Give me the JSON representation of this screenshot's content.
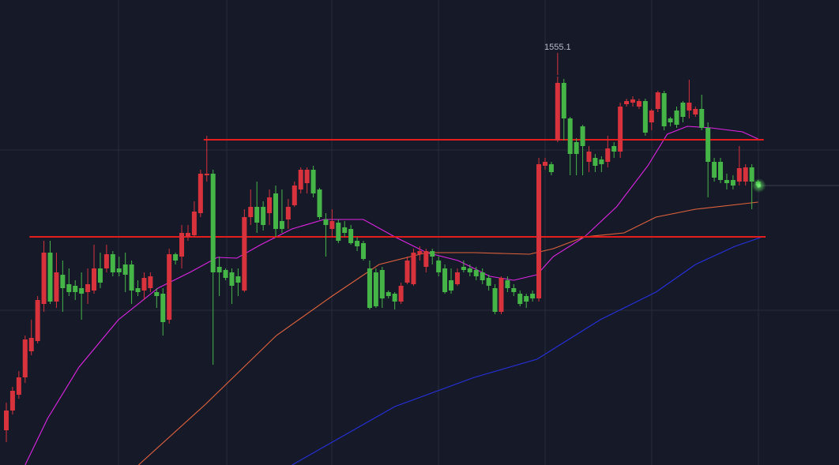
{
  "chart_data": {
    "type": "candlestick",
    "ylim": [
      1309.1,
      1603.6
    ],
    "up_color": "#d8323d",
    "down_color": "#45b548",
    "candles": {
      "open": [
        1331.1,
        1343.6,
        1353.6,
        1364.6,
        1381.1,
        1387.6,
        1411.1,
        1443.6,
        1412.6,
        1429.6,
        1423.6,
        1422.6,
        1421.1,
        1418.6,
        1419.6,
        1433.6,
        1433.6,
        1442.6,
        1433.6,
        1436.1,
        1436.1,
        1421.1,
        1419.6,
        1421.1,
        1418.6,
        1417.6,
        1401.1,
        1442.6,
        1441.1,
        1453.6,
        1454.6,
        1468.6,
        1492.6,
        1493.6,
        1434.6,
        1432.6,
        1431.1,
        1428.6,
        1419.6,
        1466.1,
        1472.6,
        1472.6,
        1468.6,
        1481.1,
        1463.6,
        1464.6,
        1473.6,
        1483.6,
        1487.6,
        1496.1,
        1483.6,
        1464.6,
        1458.6,
        1462.6,
        1459.6,
        1458.6,
        1451.1,
        1449.6,
        1433.6,
        1431.1,
        1432.6,
        1418.6,
        1417.6,
        1412.6,
        1424.6,
        1423.6,
        1442.6,
        1434.6,
        1444.6,
        1438.6,
        1433.6,
        1426.1,
        1423.6,
        1434.6,
        1433.6,
        1432.6,
        1431.1,
        1427.6,
        1421.1,
        1406.1,
        1426.1,
        1421.1,
        1417.6,
        1416.1,
        1417.6,
        1414.6,
        1498.6,
        1499.6,
        1514.6,
        1551.1,
        1528.6,
        1513.6,
        1523.6,
        1501.1,
        1503.6,
        1502.6,
        1501.1,
        1511.1,
        1507.6,
        1537.6,
        1538.6,
        1536.1,
        1539.6,
        1526.1,
        1534.6,
        1544.6,
        1528.6,
        1533.6,
        1538.6,
        1533.6,
        1531.1,
        1534.6,
        1522.6,
        1501.1,
        1501.1,
        1489.6,
        1489.6,
        1488.6,
        1488.6,
        1497.6,
        1488.6
      ],
      "high": [
        1348.6,
        1358.6,
        1368.6,
        1391.1,
        1401.1,
        1416.1,
        1451.1,
        1451.1,
        1443.6,
        1438.6,
        1433.6,
        1426.1,
        1431.1,
        1433.6,
        1448.6,
        1443.6,
        1448.6,
        1444.6,
        1441.1,
        1443.6,
        1438.6,
        1426.1,
        1431.1,
        1431.1,
        1421.1,
        1421.1,
        1446.1,
        1443.6,
        1461.1,
        1461.1,
        1476.1,
        1496.1,
        1517.6,
        1496.1,
        1441.1,
        1433.6,
        1433.6,
        1433.6,
        1471.1,
        1483.6,
        1488.6,
        1476.1,
        1483.6,
        1486.1,
        1483.6,
        1477.6,
        1488.6,
        1497.6,
        1497.6,
        1498.6,
        1484.6,
        1468.6,
        1471.1,
        1464.6,
        1463.6,
        1461.1,
        1453.6,
        1451.1,
        1438.6,
        1433.6,
        1434.6,
        1419.6,
        1418.6,
        1424.6,
        1441.1,
        1446.1,
        1447.6,
        1446.1,
        1446.1,
        1441.1,
        1436.1,
        1433.6,
        1433.6,
        1438.6,
        1436.1,
        1434.6,
        1433.6,
        1429.6,
        1423.6,
        1428.6,
        1428.6,
        1423.6,
        1419.6,
        1417.6,
        1419.6,
        1503.6,
        1503.6,
        1501.1,
        1555.1,
        1553.6,
        1529.6,
        1516.1,
        1524.6,
        1511.1,
        1506.1,
        1504.6,
        1517.6,
        1513.6,
        1538.6,
        1541.1,
        1542.6,
        1541.1,
        1541.1,
        1534.6,
        1546.1,
        1546.1,
        1529.6,
        1536.1,
        1539.6,
        1553.1,
        1536.1,
        1543.6,
        1526.1,
        1503.6,
        1503.6,
        1493.6,
        1492.6,
        1511.1,
        1499.6,
        1499.6,
        1489.6
      ],
      "low": [
        1323.6,
        1341.1,
        1351.1,
        1361.1,
        1378.6,
        1386.1,
        1406.1,
        1411.1,
        1408.6,
        1406.1,
        1416.1,
        1413.6,
        1401.1,
        1411.1,
        1417.6,
        1421.1,
        1431.1,
        1428.6,
        1428.6,
        1418.6,
        1411.1,
        1416.1,
        1413.6,
        1418.6,
        1408.6,
        1391.1,
        1398.6,
        1436.1,
        1433.6,
        1451.1,
        1453.6,
        1466.1,
        1488.6,
        1372.6,
        1416.1,
        1426.1,
        1411.1,
        1416.1,
        1418.6,
        1461.1,
        1456.1,
        1457.6,
        1461.1,
        1453.6,
        1456.1,
        1458.6,
        1472.6,
        1481.1,
        1481.1,
        1478.6,
        1464.6,
        1441.1,
        1453.6,
        1449.6,
        1453.6,
        1448.6,
        1444.6,
        1438.6,
        1407.6,
        1408.6,
        1408.6,
        1414.6,
        1407.6,
        1411.1,
        1423.6,
        1422.6,
        1438.6,
        1431.1,
        1436.1,
        1428.6,
        1417.6,
        1417.6,
        1422.6,
        1431.1,
        1428.6,
        1426.1,
        1423.6,
        1419.6,
        1404.6,
        1404.6,
        1418.6,
        1416.1,
        1409.6,
        1408.6,
        1412.6,
        1412.6,
        1496.1,
        1492.6,
        1513.6,
        1514.6,
        1492.6,
        1492.6,
        1492.6,
        1494.6,
        1494.6,
        1494.6,
        1497.6,
        1503.6,
        1503.6,
        1536.1,
        1536.1,
        1534.6,
        1517.6,
        1521.1,
        1532.6,
        1521.1,
        1523.6,
        1522.6,
        1526.1,
        1528.6,
        1529.6,
        1521.1,
        1478.6,
        1488.6,
        1487.6,
        1483.6,
        1483.6,
        1486.1,
        1486.1,
        1471.1,
        1484.6
      ],
      "close": [
        1343.6,
        1356.1,
        1364.6,
        1388.6,
        1389.6,
        1413.6,
        1443.6,
        1412.6,
        1431.1,
        1421.1,
        1418.6,
        1418.6,
        1417.6,
        1423.6,
        1433.6,
        1424.6,
        1442.6,
        1431.1,
        1431.1,
        1429.6,
        1419.6,
        1418.6,
        1427.6,
        1428.6,
        1416.1,
        1399.6,
        1442.6,
        1438.6,
        1456.1,
        1456.1,
        1469.6,
        1493.6,
        1493.6,
        1431.1,
        1431.1,
        1427.6,
        1422.6,
        1424.6,
        1466.1,
        1472.6,
        1462.6,
        1461.1,
        1478.6,
        1458.6,
        1458.6,
        1472.6,
        1486.1,
        1496.1,
        1496.1,
        1481.1,
        1466.1,
        1461.1,
        1463.6,
        1451.1,
        1456.1,
        1449.6,
        1447.6,
        1439.6,
        1408.6,
        1409.6,
        1414.6,
        1416.1,
        1412.6,
        1422.6,
        1438.6,
        1443.6,
        1444.6,
        1444.6,
        1441.1,
        1431.1,
        1418.6,
        1419.6,
        1431.1,
        1432.6,
        1431.1,
        1428.6,
        1426.1,
        1422.6,
        1406.1,
        1427.6,
        1421.1,
        1418.6,
        1411.1,
        1412.6,
        1414.6,
        1499.6,
        1501.1,
        1494.6,
        1551.1,
        1528.6,
        1506.1,
        1506.1,
        1511.1,
        1507.6,
        1498.6,
        1499.6,
        1509.6,
        1507.6,
        1536.1,
        1539.6,
        1540.6,
        1539.6,
        1519.6,
        1533.6,
        1545.1,
        1523.6,
        1526.1,
        1524.6,
        1529.6,
        1538.6,
        1534.6,
        1522.6,
        1501.1,
        1491.1,
        1489.6,
        1487.6,
        1486.1,
        1497.1,
        1497.6,
        1488.6,
        1486.1
      ]
    },
    "lines": [
      {
        "color": "#e024e6",
        "x": [
          3,
          6.6,
          11.6,
          17.9,
          24.2,
          29.3,
          33.7,
          36.8,
          40.6,
          45.6,
          50.7,
          57,
          62,
          67.1,
          72.1,
          77.2,
          81,
          84.7,
          87.3,
          92.3,
          97.4,
          102.4,
          105.5,
          108.7,
          112.5,
          117.5,
          120
        ],
        "values": [
          1309.1,
          1338.6,
          1371.1,
          1401.1,
          1421.1,
          1431.1,
          1440.6,
          1440.1,
          1448.6,
          1458.6,
          1464.6,
          1464.6,
          1453.6,
          1443.6,
          1438.6,
          1428.6,
          1426.1,
          1429.6,
          1441.1,
          1453.6,
          1472.6,
          1498.6,
          1518.6,
          1523.6,
          1522.6,
          1520.1,
          1515.6
        ]
      },
      {
        "color": "#e2623c",
        "x": [
          21.1,
          31.8,
          43.1,
          52,
          59.5,
          67.1,
          74.7,
          83.5,
          87.3,
          92.3,
          98.6,
          103.7,
          110,
          120
        ],
        "values": [
          1309.1,
          1347.6,
          1391.1,
          1416.1,
          1436.1,
          1443.6,
          1443.6,
          1442.6,
          1446.1,
          1453.6,
          1456.1,
          1466.1,
          1471.1,
          1475.6
        ]
      },
      {
        "color": "#2630e0",
        "x": [
          45.6,
          62,
          74.7,
          84.7,
          94.8,
          103.7,
          110,
          116.3,
          120.7
        ],
        "values": [
          1309.1,
          1346.1,
          1364.6,
          1376.1,
          1401.1,
          1418.6,
          1436.1,
          1447.6,
          1453.6
        ]
      }
    ],
    "levels": [
      {
        "value": 1515.1,
        "x": [
          31.5,
          120.9
        ],
        "color": "#e41c1c"
      },
      {
        "value": 1453.6,
        "x": [
          3.7,
          121.2
        ],
        "color": "#e41c1c"
      }
    ],
    "max_label": true
  }
}
